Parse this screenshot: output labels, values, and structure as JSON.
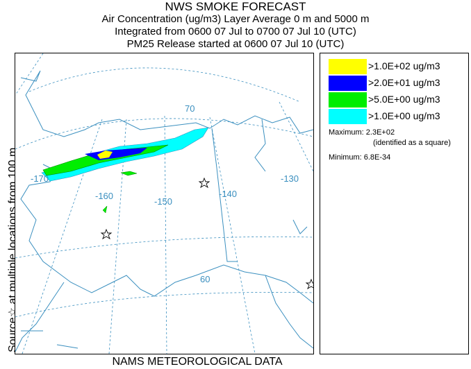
{
  "header": {
    "title": "NWS SMOKE FORECAST",
    "line2": "Air Concentration (ug/m3) Layer Average    0 m and  5000 m",
    "line3": "Integrated from 0600 07 Jul to 0700 07 Jul 10 (UTC)",
    "line4": "PM25 Release started at 0600 07 Jul 10 (UTC)"
  },
  "side_label": "Source☆  at multiple locations     from    100 m",
  "footer": "NAMS METEOROLOGICAL DATA",
  "legend": {
    "items": [
      {
        "label": ">1.0E+02 ug/m3",
        "color": "#ffff00"
      },
      {
        "label": ">2.0E+01 ug/m3",
        "color": "#0000ff"
      },
      {
        "label": ">5.0E+00 ug/m3",
        "color": "#00ee00"
      },
      {
        "label": ">1.0E+00 ug/m3",
        "color": "#00ffff"
      }
    ],
    "maximum": "Maximum: 2.3E+02",
    "maximum_note": "(identified as a square)",
    "minimum": "Minimum: 6.8E-34"
  },
  "map": {
    "lon_labels": {
      "l170": "-170",
      "l160": "-160",
      "l150": "-150",
      "l140": "-140",
      "l130": "-130"
    },
    "lat_labels": {
      "l70": "70",
      "l60": "60"
    },
    "colors": {
      "coast": "#3a8fbf",
      "grid": "#3a8fbf",
      "plume_yellow": "#ffff00",
      "plume_blue": "#0000ff",
      "plume_green": "#00ee00",
      "plume_cyan": "#00ffff"
    }
  }
}
